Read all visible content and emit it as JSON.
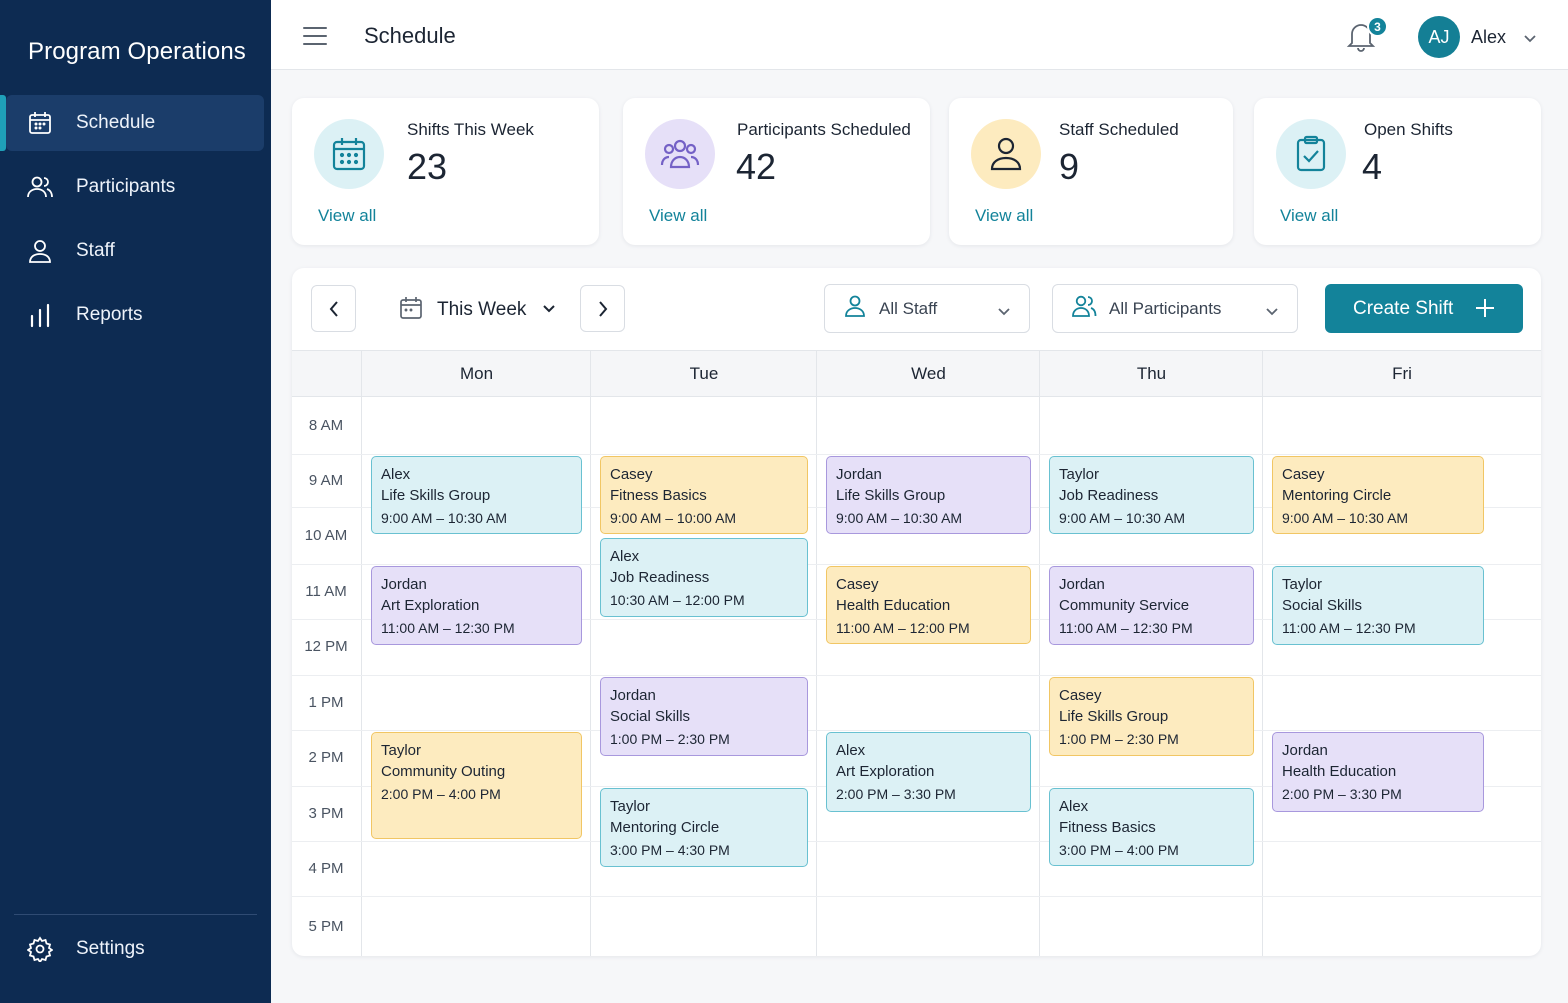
{
  "app": {
    "title": "Program Operations"
  },
  "sidebar": {
    "items": [
      {
        "label": "Schedule",
        "icon": "calendar-icon",
        "active": true
      },
      {
        "label": "Participants",
        "icon": "users-icon",
        "active": false
      },
      {
        "label": "Staff",
        "icon": "user-icon",
        "active": false
      },
      {
        "label": "Reports",
        "icon": "bar-chart-icon",
        "active": false
      }
    ],
    "settings": {
      "label": "Settings",
      "icon": "gear-icon"
    }
  },
  "header": {
    "title": "Schedule",
    "notifications_count": "3",
    "user": {
      "initials": "AJ",
      "name": "Alex"
    }
  },
  "stats": [
    {
      "label": "Shifts This Week",
      "value": "23",
      "link": "View all",
      "icon": "calendar-icon",
      "color": "#dcf1f5"
    },
    {
      "label": "Participants Scheduled",
      "value": "42",
      "link": "View all",
      "icon": "users-icon",
      "color": "#e6e0f8"
    },
    {
      "label": "Staff Scheduled",
      "value": "9",
      "link": "View all",
      "icon": "user-icon",
      "color": "#fdebbf"
    },
    {
      "label": "Open Shifts",
      "value": "4",
      "link": "View all",
      "icon": "clipboard-check-icon",
      "color": "#dcf1f5"
    }
  ],
  "toolbar": {
    "week_label": "This Week",
    "staff_filter": "All Staff",
    "participants_filter": "All Participants",
    "create_label": "Create Shift"
  },
  "calendar": {
    "days": [
      "Mon",
      "Tue",
      "Wed",
      "Thu",
      "Fri"
    ],
    "times": [
      "8 AM",
      "9 AM",
      "10 AM",
      "11 AM",
      "12 PM",
      "1 PM",
      "2 PM",
      "3 PM",
      "4 PM",
      "5 PM"
    ],
    "events": [
      {
        "day": "Mon",
        "name": "Alex",
        "title": "Life Skills Group",
        "time": "9:00 AM – 10:30 AM",
        "color": "teal"
      },
      {
        "day": "Mon",
        "name": "Jordan",
        "title": "Art Exploration",
        "time": "11:00 AM – 12:30 PM",
        "color": "purple"
      },
      {
        "day": "Mon",
        "name": "Taylor",
        "title": "Community Outing",
        "time": "2:00 PM – 4:00 PM",
        "color": "yellow"
      },
      {
        "day": "Tue",
        "name": "Casey",
        "title": "Fitness Basics",
        "time": "9:00 AM – 10:00 AM",
        "color": "yellow"
      },
      {
        "day": "Tue",
        "name": "Alex",
        "title": "Job Readiness",
        "time": "10:30 AM – 12:00 PM",
        "color": "teal"
      },
      {
        "day": "Tue",
        "name": "Jordan",
        "title": "Social Skills",
        "time": "1:00 PM – 2:30 PM",
        "color": "purple"
      },
      {
        "day": "Tue",
        "name": "Taylor",
        "title": "Mentoring Circle",
        "time": "3:00 PM – 4:30 PM",
        "color": "teal"
      },
      {
        "day": "Wed",
        "name": "Jordan",
        "title": "Life Skills Group",
        "time": "9:00 AM – 10:30 AM",
        "color": "purple"
      },
      {
        "day": "Wed",
        "name": "Casey",
        "title": "Health Education",
        "time": "11:00 AM – 12:00 PM",
        "color": "yellow"
      },
      {
        "day": "Wed",
        "name": "Alex",
        "title": "Art Exploration",
        "time": "2:00 PM – 3:30 PM",
        "color": "teal"
      },
      {
        "day": "Thu",
        "name": "Taylor",
        "title": "Job Readiness",
        "time": "9:00 AM – 10:30 AM",
        "color": "teal"
      },
      {
        "day": "Thu",
        "name": "Jordan",
        "title": "Community Service",
        "time": "11:00 AM – 12:30 PM",
        "color": "purple"
      },
      {
        "day": "Thu",
        "name": "Casey",
        "title": "Life Skills Group",
        "time": "1:00 PM – 2:30 PM",
        "color": "yellow"
      },
      {
        "day": "Thu",
        "name": "Alex",
        "title": "Fitness Basics",
        "time": "3:00 PM – 4:00 PM",
        "color": "teal"
      },
      {
        "day": "Fri",
        "name": "Casey",
        "title": "Mentoring Circle",
        "time": "9:00 AM – 10:30 AM",
        "color": "yellow"
      },
      {
        "day": "Fri",
        "name": "Taylor",
        "title": "Social Skills",
        "time": "11:00 AM – 12:30 PM",
        "color": "teal"
      },
      {
        "day": "Fri",
        "name": "Jordan",
        "title": "Health Education",
        "time": "2:00 PM – 3:30 PM",
        "color": "purple"
      }
    ]
  },
  "colors": {
    "sidebar": "#0d2b52",
    "accent": "#13839a",
    "teal": "#dcf1f5",
    "yellow": "#fdebbf",
    "purple": "#e6e0f8"
  }
}
